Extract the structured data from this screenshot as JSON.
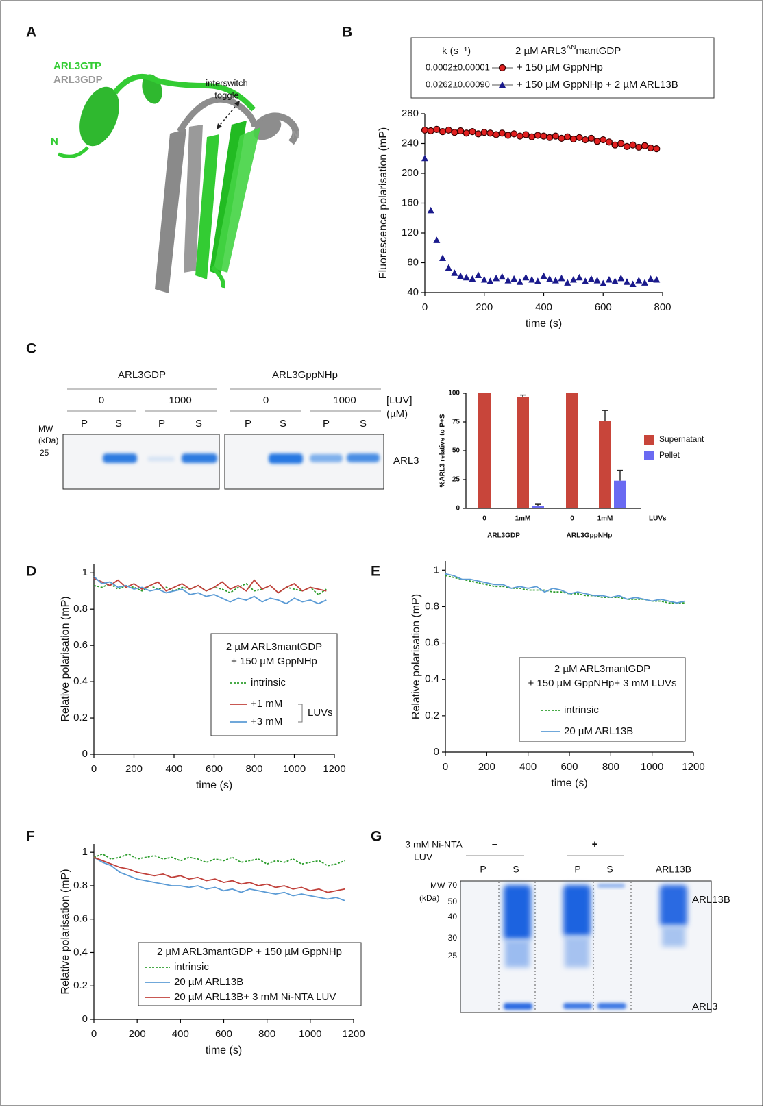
{
  "panel_labels": [
    "A",
    "B",
    "C",
    "D",
    "E",
    "F",
    "G"
  ],
  "structure": {
    "labels": [
      "ARL3GTP",
      "ARL3GDP"
    ],
    "n_termini": [
      "N",
      "N"
    ],
    "annotation": [
      "interswitch",
      "toggle"
    ]
  },
  "gel_c": {
    "groups": [
      "ARL3GDP",
      "ARL3GppNHp"
    ],
    "luv": [
      "0",
      "1000",
      "0",
      "1000"
    ],
    "luv_label": [
      "[LUV]",
      "(µM)"
    ],
    "lanes": [
      "P",
      "S",
      "P",
      "S",
      "P",
      "S",
      "P",
      "S"
    ],
    "mw_label": [
      "MW",
      "(kDa)"
    ],
    "markers": [
      "25"
    ],
    "band_label": "ARL3"
  },
  "gel_g": {
    "condition": [
      "3 mM Ni-NTA",
      "LUV"
    ],
    "signs": [
      "–",
      "+"
    ],
    "lanes": [
      "P",
      "S",
      "P",
      "S",
      "ARL13B"
    ],
    "mw_label": [
      "MW",
      "(kDa)"
    ],
    "markers": [
      "70",
      "50",
      "40",
      "30",
      "25"
    ],
    "band_labels": [
      "ARL13B",
      "ARL3"
    ]
  },
  "chart_data": [
    {
      "type": "line",
      "ylabel": "Fluorescence polarisation (mP)",
      "xlabel": "time (s)",
      "x": [
        0,
        20,
        40,
        60,
        80,
        100,
        120,
        140,
        160,
        180,
        200,
        220,
        240,
        260,
        280,
        300,
        320,
        340,
        360,
        380,
        400,
        420,
        440,
        460,
        480,
        500,
        520,
        540,
        560,
        580,
        600,
        620,
        640,
        660,
        680,
        700,
        720,
        740,
        760,
        780
      ],
      "xlim": [
        0,
        800
      ],
      "xticks": [
        0,
        200,
        400,
        600,
        800
      ],
      "ylim": [
        40,
        280
      ],
      "yticks": [
        40,
        80,
        120,
        160,
        200,
        240,
        280
      ],
      "legend_header": "k (s⁻¹)",
      "legend_title": [
        "2 µM ARL3",
        "ΔN",
        "mantGDP"
      ],
      "series": [
        {
          "name": "+ 150 µM GppNHp",
          "rate_label": "0.0002±0.00001",
          "color": "#e02020",
          "marker": "circle",
          "values": [
            258,
            257,
            259,
            256,
            258,
            255,
            257,
            254,
            256,
            253,
            255,
            254,
            252,
            254,
            251,
            253,
            250,
            252,
            249,
            251,
            250,
            248,
            250,
            247,
            249,
            246,
            248,
            245,
            247,
            243,
            245,
            242,
            238,
            240,
            236,
            238,
            235,
            237,
            234,
            233
          ]
        },
        {
          "name": "+ 150 µM GppNHp + 2 µM ARL13B",
          "rate_label": "0.0262±0.00090",
          "color": "#1a1a8c",
          "marker": "triangle",
          "values": [
            220,
            150,
            110,
            86,
            73,
            66,
            62,
            60,
            58,
            63,
            57,
            55,
            59,
            61,
            56,
            58,
            54,
            60,
            57,
            55,
            62,
            58,
            56,
            59,
            53,
            57,
            60,
            55,
            58,
            56,
            52,
            57,
            55,
            59,
            54,
            51,
            56,
            53,
            58,
            57
          ]
        }
      ]
    },
    {
      "type": "bar",
      "ylabel": "%ARL3 relative to P+S",
      "categories": [
        "0",
        "1mM",
        "0",
        "1mM"
      ],
      "group_labels": [
        "ARL3GDP",
        "ARL3GppNHp"
      ],
      "axis_note": "LUVs",
      "ylim": [
        0,
        100
      ],
      "yticks": [
        0,
        25,
        50,
        75,
        100
      ],
      "series": [
        {
          "name": "Supernatant",
          "color": "#c8453a",
          "values": [
            100,
            97,
            100,
            76
          ],
          "errors": [
            0,
            1.5,
            0,
            9
          ]
        },
        {
          "name": "Pellet",
          "color": "#6a6af2",
          "values": [
            0,
            2,
            0,
            24
          ],
          "errors": [
            0,
            1.5,
            0,
            9
          ]
        }
      ]
    },
    {
      "type": "line",
      "ylabel": "Relative polarisation (mP)",
      "xlabel": "time (s)",
      "x": [
        0,
        40,
        80,
        120,
        160,
        200,
        240,
        280,
        320,
        360,
        400,
        440,
        480,
        520,
        560,
        600,
        640,
        680,
        720,
        760,
        800,
        840,
        880,
        920,
        960,
        1000,
        1040,
        1080,
        1120,
        1160
      ],
      "xlim": [
        0,
        1200
      ],
      "xticks": [
        0,
        200,
        400,
        600,
        800,
        1000,
        1200
      ],
      "ylim": [
        0,
        1.05
      ],
      "yticks": [
        0,
        0.2,
        0.4,
        0.6,
        0.8,
        1
      ],
      "legend_title": [
        "2 µM ARL3mantGDP",
        "+ 150 µM GppNHp"
      ],
      "legend_note": "LUVs",
      "series": [
        {
          "name": "intrinsic",
          "color": "#2e9e2e",
          "dashed": true,
          "values": [
            0.93,
            0.92,
            0.94,
            0.91,
            0.93,
            0.92,
            0.9,
            0.93,
            0.91,
            0.92,
            0.9,
            0.92,
            0.91,
            0.93,
            0.9,
            0.92,
            0.91,
            0.89,
            0.92,
            0.94,
            0.9,
            0.91,
            0.93,
            0.89,
            0.92,
            0.91,
            0.9,
            0.92,
            0.88,
            0.91
          ]
        },
        {
          "name": "+1 mM",
          "color": "#c0403a",
          "values": [
            0.97,
            0.95,
            0.93,
            0.96,
            0.92,
            0.94,
            0.91,
            0.93,
            0.95,
            0.9,
            0.92,
            0.94,
            0.91,
            0.93,
            0.9,
            0.92,
            0.95,
            0.91,
            0.93,
            0.9,
            0.96,
            0.91,
            0.93,
            0.89,
            0.92,
            0.94,
            0.9,
            0.92,
            0.91,
            0.9
          ]
        },
        {
          "name": "+3 mM",
          "color": "#5b9bd5",
          "values": [
            0.98,
            0.94,
            0.95,
            0.92,
            0.93,
            0.91,
            0.92,
            0.9,
            0.91,
            0.89,
            0.9,
            0.91,
            0.88,
            0.89,
            0.87,
            0.88,
            0.86,
            0.84,
            0.86,
            0.85,
            0.87,
            0.84,
            0.86,
            0.85,
            0.83,
            0.86,
            0.84,
            0.85,
            0.83,
            0.85
          ]
        }
      ]
    },
    {
      "type": "line",
      "ylabel": "Relative polarisation (mP)",
      "xlabel": "time (s)",
      "x": [
        0,
        40,
        80,
        120,
        160,
        200,
        240,
        280,
        320,
        360,
        400,
        440,
        480,
        520,
        560,
        600,
        640,
        680,
        720,
        760,
        800,
        840,
        880,
        920,
        960,
        1000,
        1040,
        1080,
        1120,
        1160
      ],
      "xlim": [
        0,
        1200
      ],
      "xticks": [
        0,
        200,
        400,
        600,
        800,
        1000,
        1200
      ],
      "ylim": [
        0,
        1.05
      ],
      "yticks": [
        0,
        0.2,
        0.4,
        0.6,
        0.8,
        1
      ],
      "legend_title": [
        "2 µM ARL3mantGDP",
        "+ 150 µM GppNHp+ 3 mM LUVs"
      ],
      "series": [
        {
          "name": "intrinsic",
          "color": "#2e9e2e",
          "dashed": true,
          "values": [
            0.97,
            0.96,
            0.95,
            0.94,
            0.93,
            0.92,
            0.91,
            0.91,
            0.9,
            0.9,
            0.89,
            0.89,
            0.89,
            0.88,
            0.88,
            0.87,
            0.87,
            0.86,
            0.86,
            0.85,
            0.85,
            0.85,
            0.84,
            0.84,
            0.84,
            0.83,
            0.83,
            0.82,
            0.82,
            0.82
          ]
        },
        {
          "name": "20 µM ARL13B",
          "color": "#5b9bd5",
          "values": [
            0.98,
            0.97,
            0.95,
            0.95,
            0.94,
            0.93,
            0.92,
            0.92,
            0.9,
            0.91,
            0.9,
            0.91,
            0.88,
            0.9,
            0.89,
            0.87,
            0.88,
            0.87,
            0.86,
            0.86,
            0.85,
            0.86,
            0.84,
            0.85,
            0.84,
            0.83,
            0.84,
            0.83,
            0.82,
            0.83
          ]
        }
      ]
    },
    {
      "type": "line",
      "ylabel": "Relative polarisation (mP)",
      "xlabel": "time (s)",
      "x": [
        0,
        40,
        80,
        120,
        160,
        200,
        240,
        280,
        320,
        360,
        400,
        440,
        480,
        520,
        560,
        600,
        640,
        680,
        720,
        760,
        800,
        840,
        880,
        920,
        960,
        1000,
        1040,
        1080,
        1120,
        1160
      ],
      "xlim": [
        0,
        1200
      ],
      "xticks": [
        0,
        200,
        400,
        600,
        800,
        1000,
        1200
      ],
      "ylim": [
        0,
        1.05
      ],
      "yticks": [
        0,
        0.2,
        0.4,
        0.6,
        0.8,
        1
      ],
      "legend_title": [
        "2 µM ARL3mantGDP + 150 µM GppNHp"
      ],
      "series": [
        {
          "name": "intrinsic",
          "color": "#2e9e2e",
          "dashed": true,
          "values": [
            0.97,
            0.99,
            0.96,
            0.97,
            0.99,
            0.96,
            0.97,
            0.98,
            0.96,
            0.97,
            0.95,
            0.97,
            0.96,
            0.94,
            0.96,
            0.95,
            0.97,
            0.94,
            0.95,
            0.96,
            0.93,
            0.95,
            0.94,
            0.96,
            0.93,
            0.94,
            0.95,
            0.92,
            0.93,
            0.95
          ]
        },
        {
          "name": "20 µM ARL13B",
          "color": "#5b9bd5",
          "values": [
            0.97,
            0.94,
            0.92,
            0.88,
            0.86,
            0.84,
            0.83,
            0.82,
            0.81,
            0.8,
            0.8,
            0.79,
            0.8,
            0.78,
            0.79,
            0.77,
            0.78,
            0.76,
            0.78,
            0.77,
            0.76,
            0.75,
            0.76,
            0.74,
            0.75,
            0.74,
            0.73,
            0.72,
            0.73,
            0.71
          ]
        },
        {
          "name": "20 µM ARL13B+ 3 mM Ni-NTA LUV",
          "color": "#c0403a",
          "values": [
            0.97,
            0.95,
            0.93,
            0.91,
            0.9,
            0.88,
            0.87,
            0.86,
            0.87,
            0.85,
            0.86,
            0.84,
            0.85,
            0.83,
            0.84,
            0.82,
            0.83,
            0.81,
            0.82,
            0.8,
            0.81,
            0.79,
            0.8,
            0.78,
            0.79,
            0.77,
            0.78,
            0.76,
            0.77,
            0.78
          ]
        }
      ]
    }
  ]
}
